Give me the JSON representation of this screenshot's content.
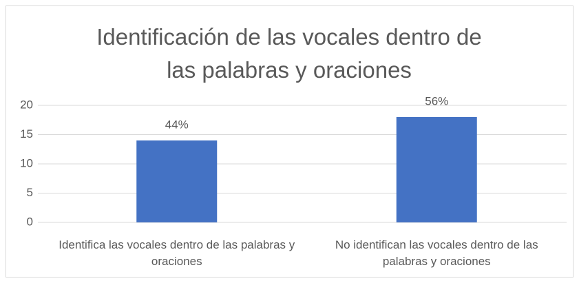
{
  "chart_data": {
    "type": "bar",
    "title": "Identificación de las vocales dentro de las palabras y oraciones",
    "categories": [
      "Identifica las vocales dentro de las palabras y oraciones",
      "No identifican las vocales dentro de las palabras y oraciones"
    ],
    "values": [
      14,
      18
    ],
    "value_labels": [
      "44%",
      "56%"
    ],
    "color": "#4472c4",
    "ylim": [
      0,
      20
    ],
    "yticks": [
      0,
      5,
      10,
      15,
      20
    ],
    "grid": true
  }
}
